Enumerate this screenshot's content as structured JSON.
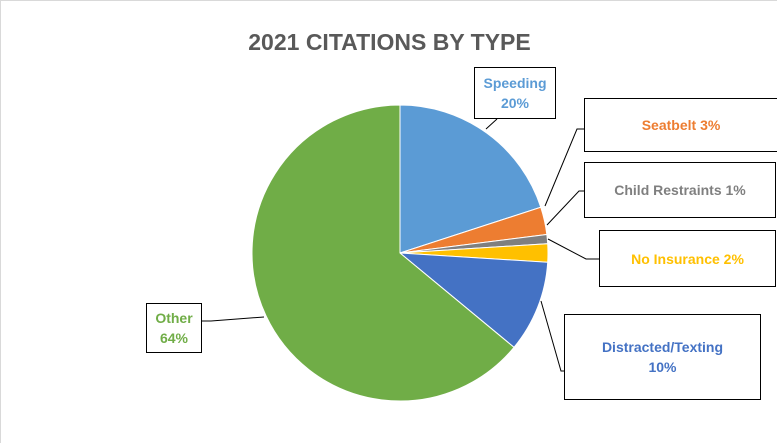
{
  "chart_data": {
    "type": "pie",
    "title": "2021 CITATIONS BY TYPE",
    "slices": [
      {
        "label": "Speeding",
        "value": 20,
        "value_label": "20%",
        "color": "#5B9BD5"
      },
      {
        "label": "Seatbelt",
        "value": 3,
        "value_label": "3%",
        "color": "#ED7D31"
      },
      {
        "label": "Child Restraints",
        "value": 1,
        "value_label": "1%",
        "color": "#7F7F7F"
      },
      {
        "label": "No Insurance",
        "value": 2,
        "value_label": "2%",
        "color": "#FFC000"
      },
      {
        "label": "Distracted/Texting",
        "value": 10,
        "value_label": "10%",
        "color": "#4472C4"
      },
      {
        "label": "Other",
        "value": 64,
        "value_label": "64%",
        "color": "#70AD47"
      }
    ],
    "start_angle": "12 o'clock",
    "direction": "clockwise",
    "legend": "none (data callout labels)"
  }
}
